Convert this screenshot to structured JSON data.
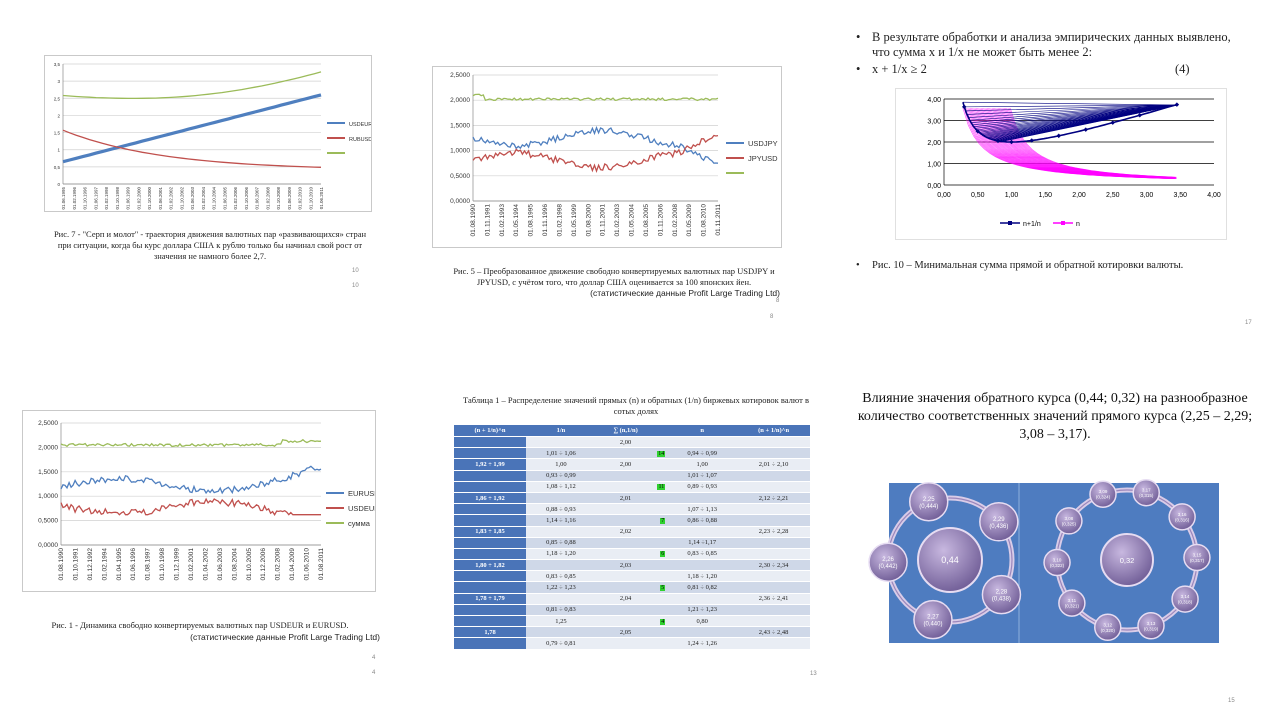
{
  "slide1": {
    "y_ticks": [
      "0",
      "0,5",
      "1",
      "1,5",
      "2",
      "2,5",
      "3",
      "3,5"
    ],
    "x_ticks": [
      "01.06.1995",
      "01.02.1996",
      "01.10.1996",
      "01.06.1997",
      "01.02.1998",
      "01.10.1998",
      "01.06.1999",
      "01.02.2000",
      "01.10.2000",
      "01.06.2001",
      "01.02.2002",
      "01.10.2002",
      "01.06.2003",
      "01.02.2004",
      "01.10.2004",
      "01.06.2005",
      "01.02.2006",
      "01.10.2006",
      "01.06.2007",
      "01.02.2008",
      "01.10.2008",
      "01.06.2009",
      "01.02.2010",
      "01.10.2010",
      "01.06.2011"
    ],
    "legend": [
      "USDEUR",
      "RUBUSD",
      ""
    ],
    "caption": "Рис. 7 - \"Серп и молот\" - траектория движения валютных пар «развивающихся» стран при ситуации, когда бы курс доллара США к рублю только бы начинал свой рост от значения не намного более 2,7.",
    "page_a": "10",
    "page_b": "10",
    "colors": {
      "usdeur": "#4f7fbf",
      "rubusd": "#c0504d",
      "sum": "#9bbb59"
    }
  },
  "slide2": {
    "y_ticks": [
      "0,0000",
      "0,5000",
      "1,0000",
      "1,5000",
      "2,0000",
      "2,5000"
    ],
    "x_ticks": [
      "01.08.1990",
      "01.11.1991",
      "01.02.1993",
      "01.05.1994",
      "01.08.1995",
      "01.11.1996",
      "01.02.1998",
      "01.05.1999",
      "01.08.2000",
      "01.11.2001",
      "01.02.2003",
      "01.05.2004",
      "01.08.2005",
      "01.11.2006",
      "01.02.2008",
      "01.05.2009",
      "01.08.2010",
      "01.11.2011"
    ],
    "legend": [
      "USDJPY",
      "JPYUSD",
      ""
    ],
    "caption_a": "Рис. 5 – Преобразованное движение свободно конвертируемых валютных пар USDJPY и JPYUSD, с учётом того, что доллар США оценивается за 100 японских йен.",
    "caption_b": "(статистические данные Profit Large Trading Ltd)",
    "page_a": "8",
    "page_b": "8"
  },
  "slide3": {
    "bullet1": "В результате обработки и анализа эмпирических данных выявлено, что сумма x и 1/x не может быть менее 2:",
    "bullet2": "x + 1/x ≥ 2",
    "eq_no": "(4)",
    "y_ticks": [
      "0,00",
      "1,00",
      "2,00",
      "3,00",
      "4,00"
    ],
    "x_ticks": [
      "0,00",
      "0,50",
      "1,00",
      "1,50",
      "2,00",
      "2,50",
      "3,00",
      "3,50",
      "4,00"
    ],
    "legend": [
      "n+1/n",
      "n"
    ],
    "caption": "Рис. 10 – Минимальная сумма прямой и обратной котировки валюты.",
    "page": "17",
    "colors": {
      "sum": "#000080",
      "n": "#ff00ff"
    }
  },
  "slide4": {
    "y_ticks": [
      "0,0000",
      "0,5000",
      "1,0000",
      "1,5000",
      "2,0000",
      "2,5000"
    ],
    "x_ticks": [
      "01.08.1990",
      "01.10.1991",
      "01.12.1992",
      "01.02.1994",
      "01.04.1995",
      "01.06.1996",
      "01.08.1997",
      "01.10.1998",
      "01.12.1999",
      "01.02.2001",
      "01.04.2002",
      "01.06.2003",
      "01.08.2004",
      "01.10.2005",
      "01.12.2006",
      "01.02.2008",
      "01.04.2009",
      "01.06.2010",
      "01.08.2011"
    ],
    "legend": [
      "EURUSD",
      "USDEUR",
      "сумма"
    ],
    "caption_a": "Рис. 1 - Динамика свободно конвертируемых валютных пар USDEUR и EURUSD.",
    "caption_b": "(статистические данные Profit Large Trading Ltd)",
    "page_a": "4",
    "page_b": "4"
  },
  "slide5": {
    "title": "Таблица 1 – Распределение значений прямых (n) и обратных (1/n) биржевых котировок валют в сотых долях",
    "headers": [
      "(n + 1/n)^n",
      "1/n",
      "∑ (n,1/n)",
      "",
      "n",
      "(n + 1/n)^n"
    ],
    "rows": [
      [
        "",
        "",
        "2,00",
        "",
        "",
        ""
      ],
      [
        "",
        "1,01 ÷ 1,06",
        "",
        "14",
        "0,94 ÷ 0,99",
        ""
      ],
      [
        "1,92 ÷ 1,99",
        "1,00",
        "2,00",
        "",
        "1,00",
        "2,01 ÷ 2,10"
      ],
      [
        "",
        "0,93 ÷ 0,99",
        "",
        "",
        "1,01 ÷ 1,07",
        ""
      ],
      [
        "",
        "1,08 ÷ 1,12",
        "",
        "11",
        "0,89 ÷ 0,93",
        ""
      ],
      [
        "1,86 ÷ 1,92",
        "",
        "2,01",
        "",
        "",
        "2,12 ÷ 2,21"
      ],
      [
        "",
        "0,88 ÷ 0,93",
        "",
        "",
        "1,07 ÷ 1,13",
        ""
      ],
      [
        "",
        "1,14 ÷ 1,16",
        "",
        "7",
        "0,86 ÷ 0,88",
        ""
      ],
      [
        "1,83 ÷ 1,85",
        "",
        "2,02",
        "",
        "",
        "2,23 ÷ 2,28"
      ],
      [
        "",
        "0,85 ÷ 0,88",
        "",
        "",
        "1,14 ÷1,17",
        ""
      ],
      [
        "",
        "1,18 ÷ 1,20",
        "",
        "6",
        "0,83 ÷ 0,85",
        ""
      ],
      [
        "1,80 ÷ 1,82",
        "",
        "2,03",
        "",
        "",
        "2,30 ÷ 2,34"
      ],
      [
        "",
        "0,83 ÷ 0,85",
        "",
        "",
        "1,18 ÷ 1,20",
        ""
      ],
      [
        "",
        "1,22 ÷ 1,23",
        "",
        "5",
        "0,81 ÷ 0,82",
        ""
      ],
      [
        "1,78 ÷ 1,79",
        "",
        "2,04",
        "",
        "",
        "2,36 ÷ 2,41"
      ],
      [
        "",
        "0,81 ÷ 0,83",
        "",
        "",
        "1,21 ÷ 1,23",
        ""
      ],
      [
        "",
        "1,25",
        "",
        "4",
        "0,80",
        ""
      ],
      [
        "1,78",
        "",
        "2,05",
        "",
        "",
        "2,43 ÷ 2,48"
      ],
      [
        "",
        "0,79 ÷ 0,81",
        "",
        "",
        "1,24 ÷ 1,26",
        ""
      ]
    ],
    "page": "13"
  },
  "slide6": {
    "title": "Влияние значения обратного курса (0,44; 0,32) на разнообразное количество соответственных значений прямого курса (2,25 – 2,29; 3,08 – 3,17).",
    "left_center": "0,44",
    "left_nodes": [
      "2,25\n(0,444)",
      "2,29\n(0,436)",
      "2,28\n(0,438)",
      "2,27\n(0,440)",
      "2,26\n(0,442)"
    ],
    "right_center": "0,32",
    "right_nodes": [
      "3,09\n(0,324)",
      "3,17\n(0,315)",
      "3,16\n(0,316)",
      "3,15\n(0,317)",
      "3,14\n(0,318)",
      "3,13\n(0,319)",
      "3,12\n(0,320)",
      "3,11\n(0,321)",
      "3,10\n(0,322)",
      "3,08\n(0,325)"
    ],
    "page": "15"
  }
}
